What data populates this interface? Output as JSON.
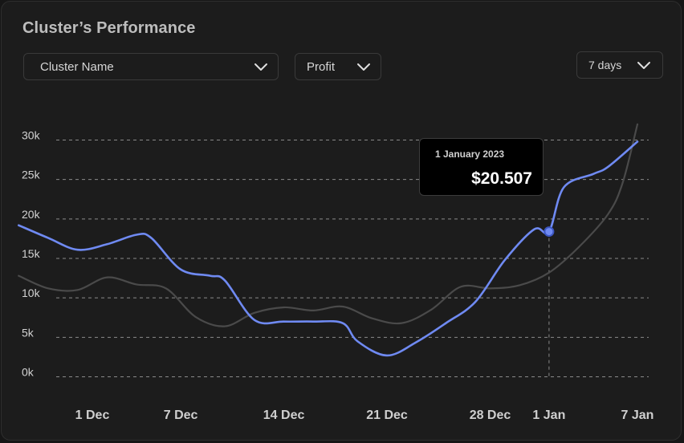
{
  "header": {
    "title": "Cluster’s Performance"
  },
  "filters": {
    "cluster": {
      "value": "Cluster Name",
      "icon": "chevron-down-icon"
    },
    "metric": {
      "value": "Profit",
      "icon": "chevron-down-icon"
    },
    "range": {
      "value": "7 days",
      "icon": "chevron-down-icon"
    }
  },
  "tooltip": {
    "date": "1 January 2023",
    "value": "$20.507"
  },
  "colors": {
    "primary": "#6f8af2",
    "secondary": "#4a4a4a",
    "grid": "#8a8a8a",
    "background": "#1c1c1c"
  },
  "chart_data": {
    "type": "line",
    "title": "",
    "xlabel": "",
    "ylabel": "",
    "ylim": [
      0,
      30000
    ],
    "yticks": [
      "0k",
      "5k",
      "10k",
      "15k",
      "20k",
      "25k",
      "30k"
    ],
    "xticks": [
      "1 Dec",
      "7 Dec",
      "14 Dec",
      "21 Dec",
      "28 Dec",
      "1 Jan",
      "7 Jan"
    ],
    "grid": true,
    "series": [
      {
        "x": [
          "26 Nov",
          "28 Nov",
          "30 Nov",
          "2 Dec",
          "4 Dec",
          "5 Dec",
          "7 Dec",
          "9 Dec",
          "10 Dec",
          "12 Dec",
          "14 Dec",
          "16 Dec",
          "18 Dec",
          "19 Dec",
          "21 Dec",
          "23 Dec",
          "25 Dec",
          "27 Dec",
          "29 Dec",
          "31 Dec",
          "1 Jan",
          "2 Jan",
          "4 Jan",
          "5 Jan",
          "7 Jan"
        ],
        "values": [
          19200,
          17600,
          16100,
          16800,
          18000,
          17600,
          13600,
          12800,
          12200,
          7200,
          7000,
          7000,
          6800,
          4500,
          2700,
          4400,
          6800,
          9500,
          14800,
          18700,
          18400,
          24000,
          25700,
          26600,
          29800
        ]
      },
      {
        "x": [
          "26 Nov",
          "28 Nov",
          "30 Nov",
          "2 Dec",
          "4 Dec",
          "6 Dec",
          "8 Dec",
          "10 Dec",
          "12 Dec",
          "14 Dec",
          "16 Dec",
          "18 Dec",
          "20 Dec",
          "22 Dec",
          "24 Dec",
          "26 Dec",
          "28 Dec",
          "30 Dec",
          "1 Jan",
          "3 Jan",
          "5 Jan",
          "6 Jan",
          "7 Jan"
        ],
        "values": [
          12800,
          11200,
          11000,
          12600,
          11700,
          11200,
          7600,
          6400,
          8100,
          8800,
          8400,
          8900,
          7400,
          6800,
          8500,
          11400,
          11200,
          11600,
          13200,
          16400,
          20600,
          24600,
          32000
        ]
      }
    ]
  }
}
